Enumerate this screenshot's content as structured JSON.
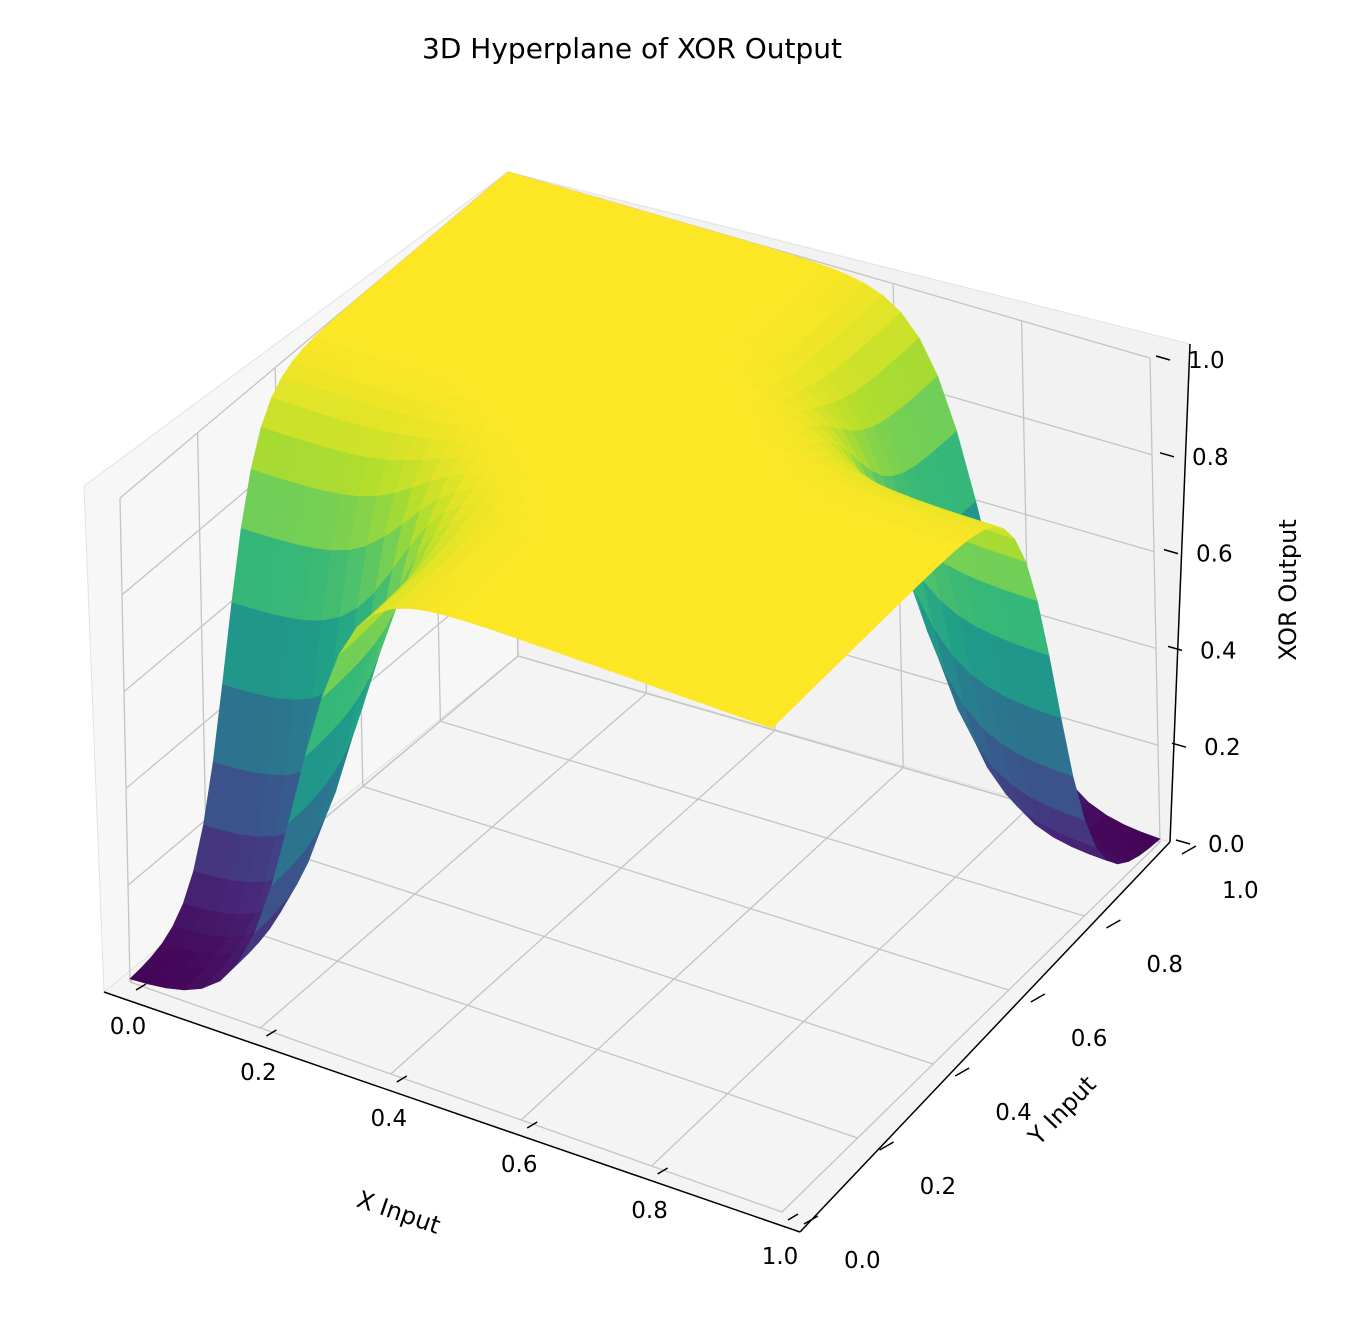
{
  "chart_data": {
    "type": "surface",
    "title": "3D Hyperplane of XOR Output",
    "xlabel": "X Input",
    "ylabel": "Y Input",
    "zlabel": "XOR Output",
    "xlim": [
      0,
      1
    ],
    "ylim": [
      0,
      1
    ],
    "zlim": [
      0,
      1
    ],
    "x_ticks": [
      "0.0",
      "0.2",
      "0.4",
      "0.6",
      "0.8",
      "1.0"
    ],
    "y_ticks": [
      "0.0",
      "0.2",
      "0.4",
      "0.6",
      "0.8",
      "1.0"
    ],
    "z_ticks": [
      "0.0",
      "0.2",
      "0.4",
      "0.6",
      "0.8",
      "1.0"
    ],
    "colormap": "viridis",
    "grid": true,
    "surface_corners": [
      {
        "x": 0,
        "y": 0,
        "z": 0.0
      },
      {
        "x": 1,
        "y": 0,
        "z": 1.0
      },
      {
        "x": 0,
        "y": 1,
        "z": 1.0
      },
      {
        "x": 1,
        "y": 1,
        "z": 0.0
      }
    ]
  }
}
